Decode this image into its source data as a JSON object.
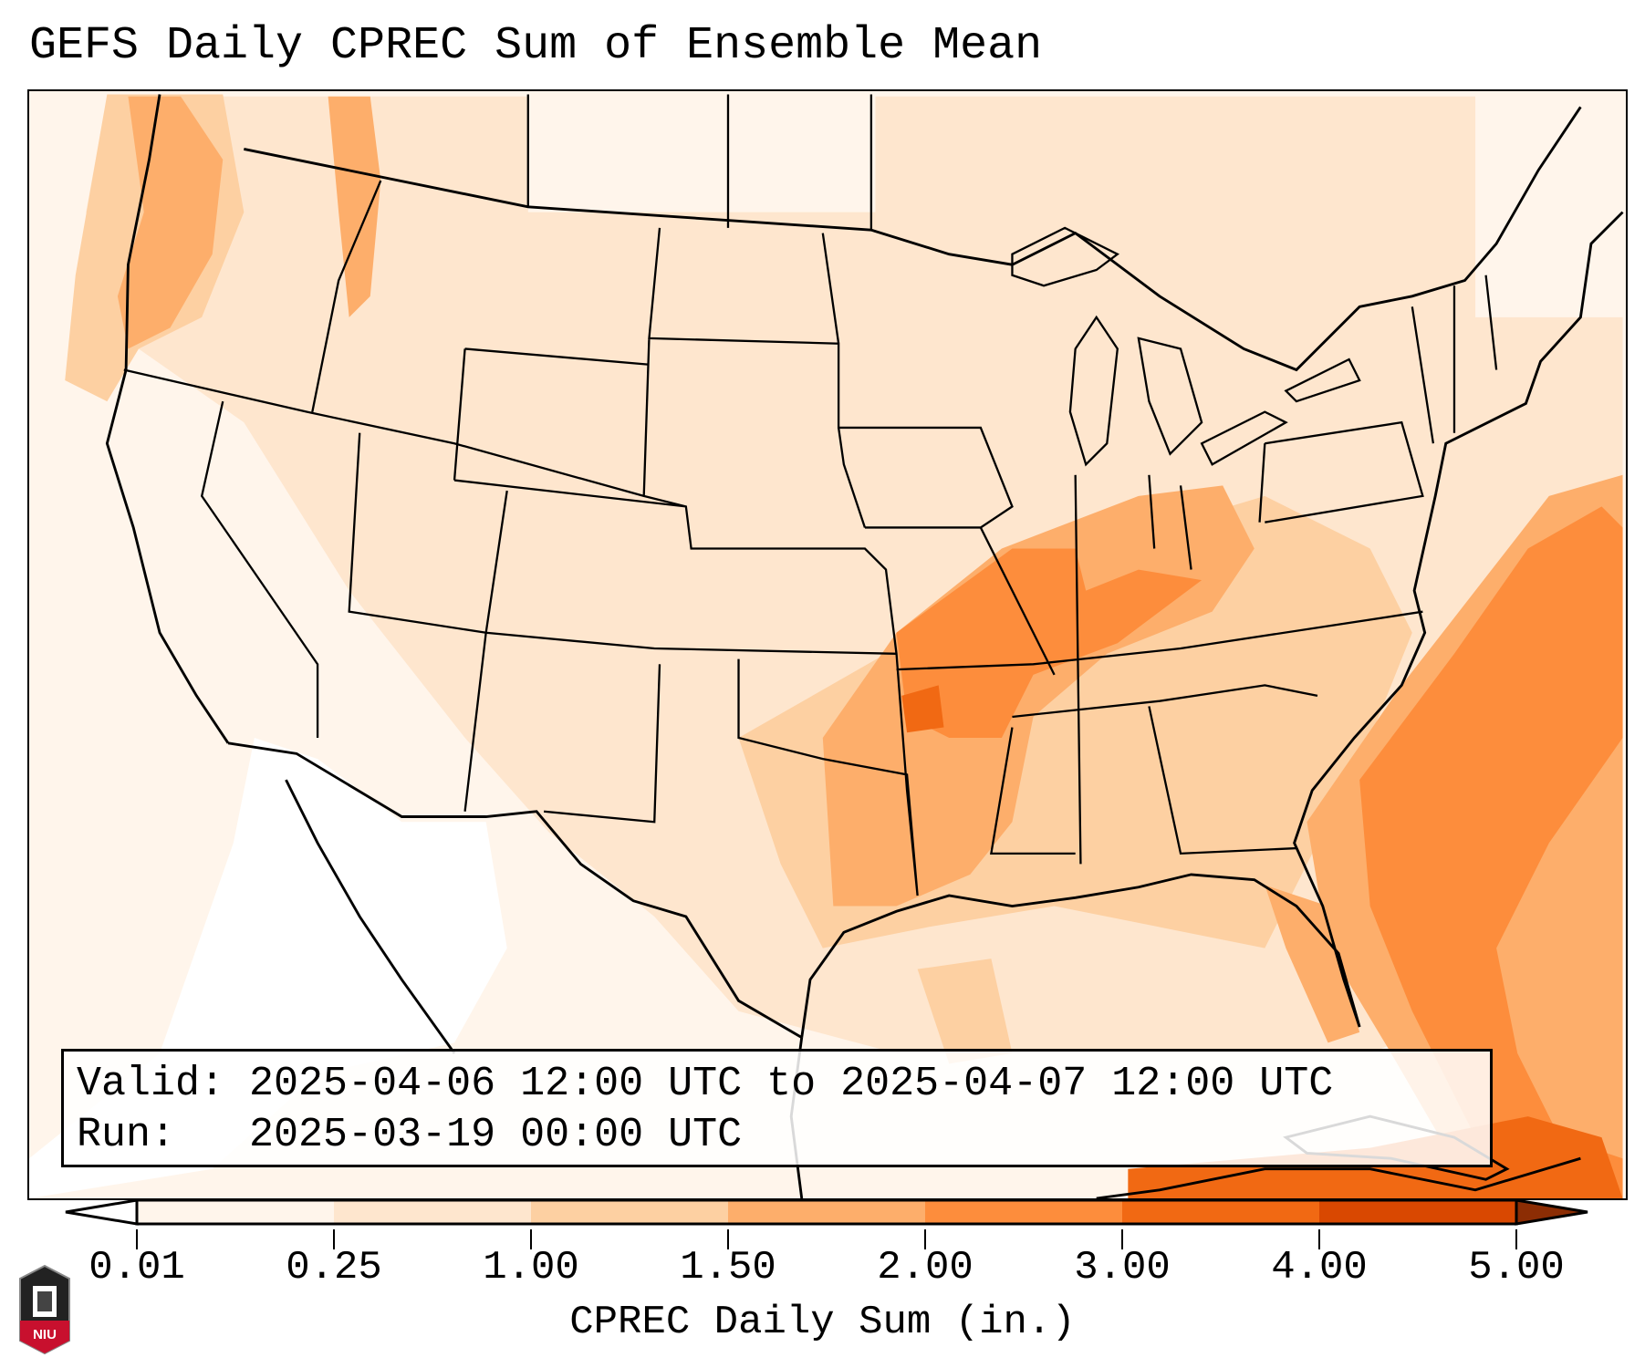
{
  "title": "GEFS Daily CPREC Sum of Ensemble Mean",
  "info": {
    "valid_label": "Valid:",
    "valid_value": "2025-04-06 12:00 UTC to 2025-04-07 12:00 UTC",
    "run_label": "Run:",
    "run_value": "2025-03-19 00:00 UTC"
  },
  "colorbar": {
    "label": "CPREC Daily Sum (in.)",
    "ticks": [
      "0.01",
      "0.25",
      "1.00",
      "1.50",
      "2.00",
      "3.00",
      "4.00",
      "5.00"
    ],
    "colors": [
      "#fff5eb",
      "#fee6ce",
      "#fdd0a2",
      "#fdae6b",
      "#fd8d3c",
      "#f16913",
      "#d94801"
    ],
    "under_color": "#ffffff",
    "over_color": "#8c2d04",
    "extend": "both"
  },
  "logo": {
    "text": "NIU"
  }
}
